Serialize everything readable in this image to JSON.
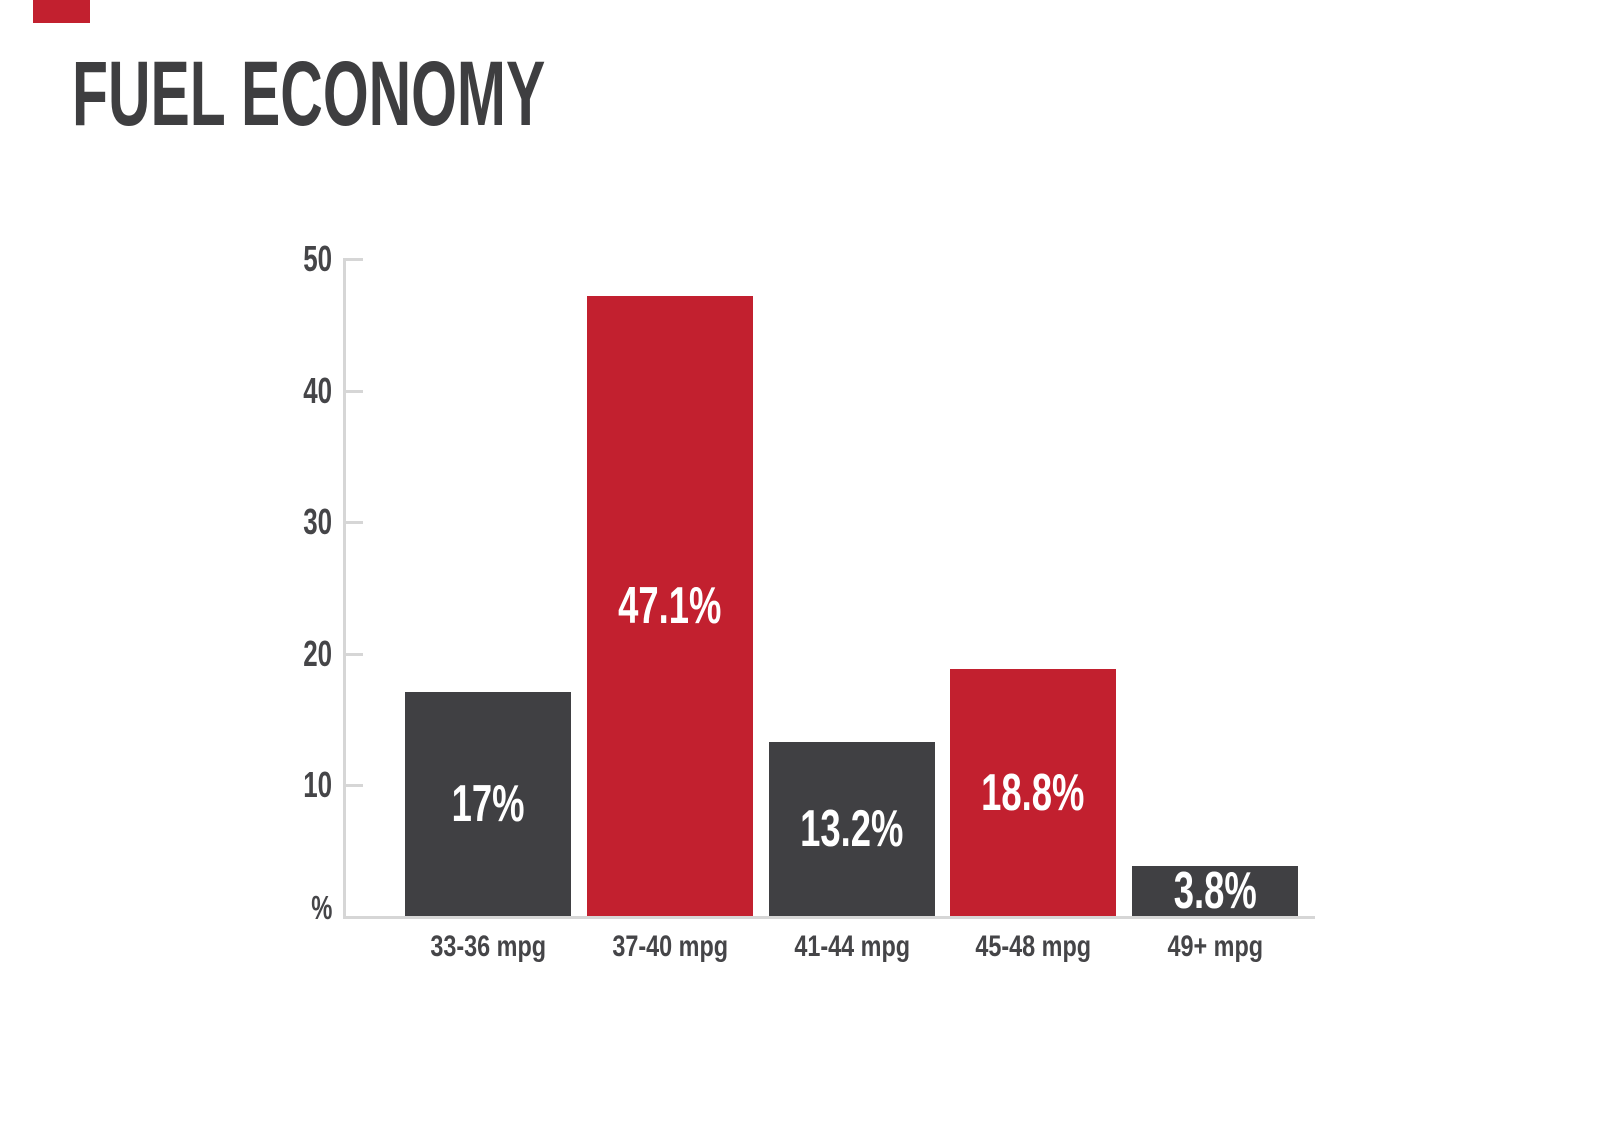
{
  "page": {
    "title": "FUEL ECONOMY"
  },
  "colors": {
    "background": "#FFFFFF",
    "red": "#C2202F",
    "dark_bar": "#404043",
    "title_text": "#3E3E40",
    "axis_line": "#D6D6D6",
    "tick_text": "#454548",
    "value_text": "#FFFFFF"
  },
  "chart_data": {
    "type": "bar",
    "title": "FUEL ECONOMY",
    "categories": [
      "33-36 mpg",
      "37-40 mpg",
      "41-44 mpg",
      "45-48 mpg",
      "49+ mpg"
    ],
    "values": [
      17,
      47.1,
      13.2,
      18.8,
      3.8
    ],
    "value_labels": [
      "17%",
      "47.1%",
      "13.2%",
      "18.8%",
      "3.8%"
    ],
    "bar_color_names": [
      "dark",
      "red",
      "dark",
      "red",
      "dark"
    ],
    "bar_colors": [
      "#404043",
      "#C2202F",
      "#404043",
      "#C2202F",
      "#404043"
    ],
    "xlabel": "",
    "ylabel": "%",
    "ylim": [
      0,
      50
    ],
    "yticks": [
      {
        "label": "50",
        "value": 50
      },
      {
        "label": "40",
        "value": 40
      },
      {
        "label": "30",
        "value": 30
      },
      {
        "label": "20",
        "value": 20
      },
      {
        "label": "10",
        "value": 10
      }
    ],
    "y_base_label": "%",
    "grid": false,
    "legend": false,
    "value_labels_inside_bars": true
  }
}
